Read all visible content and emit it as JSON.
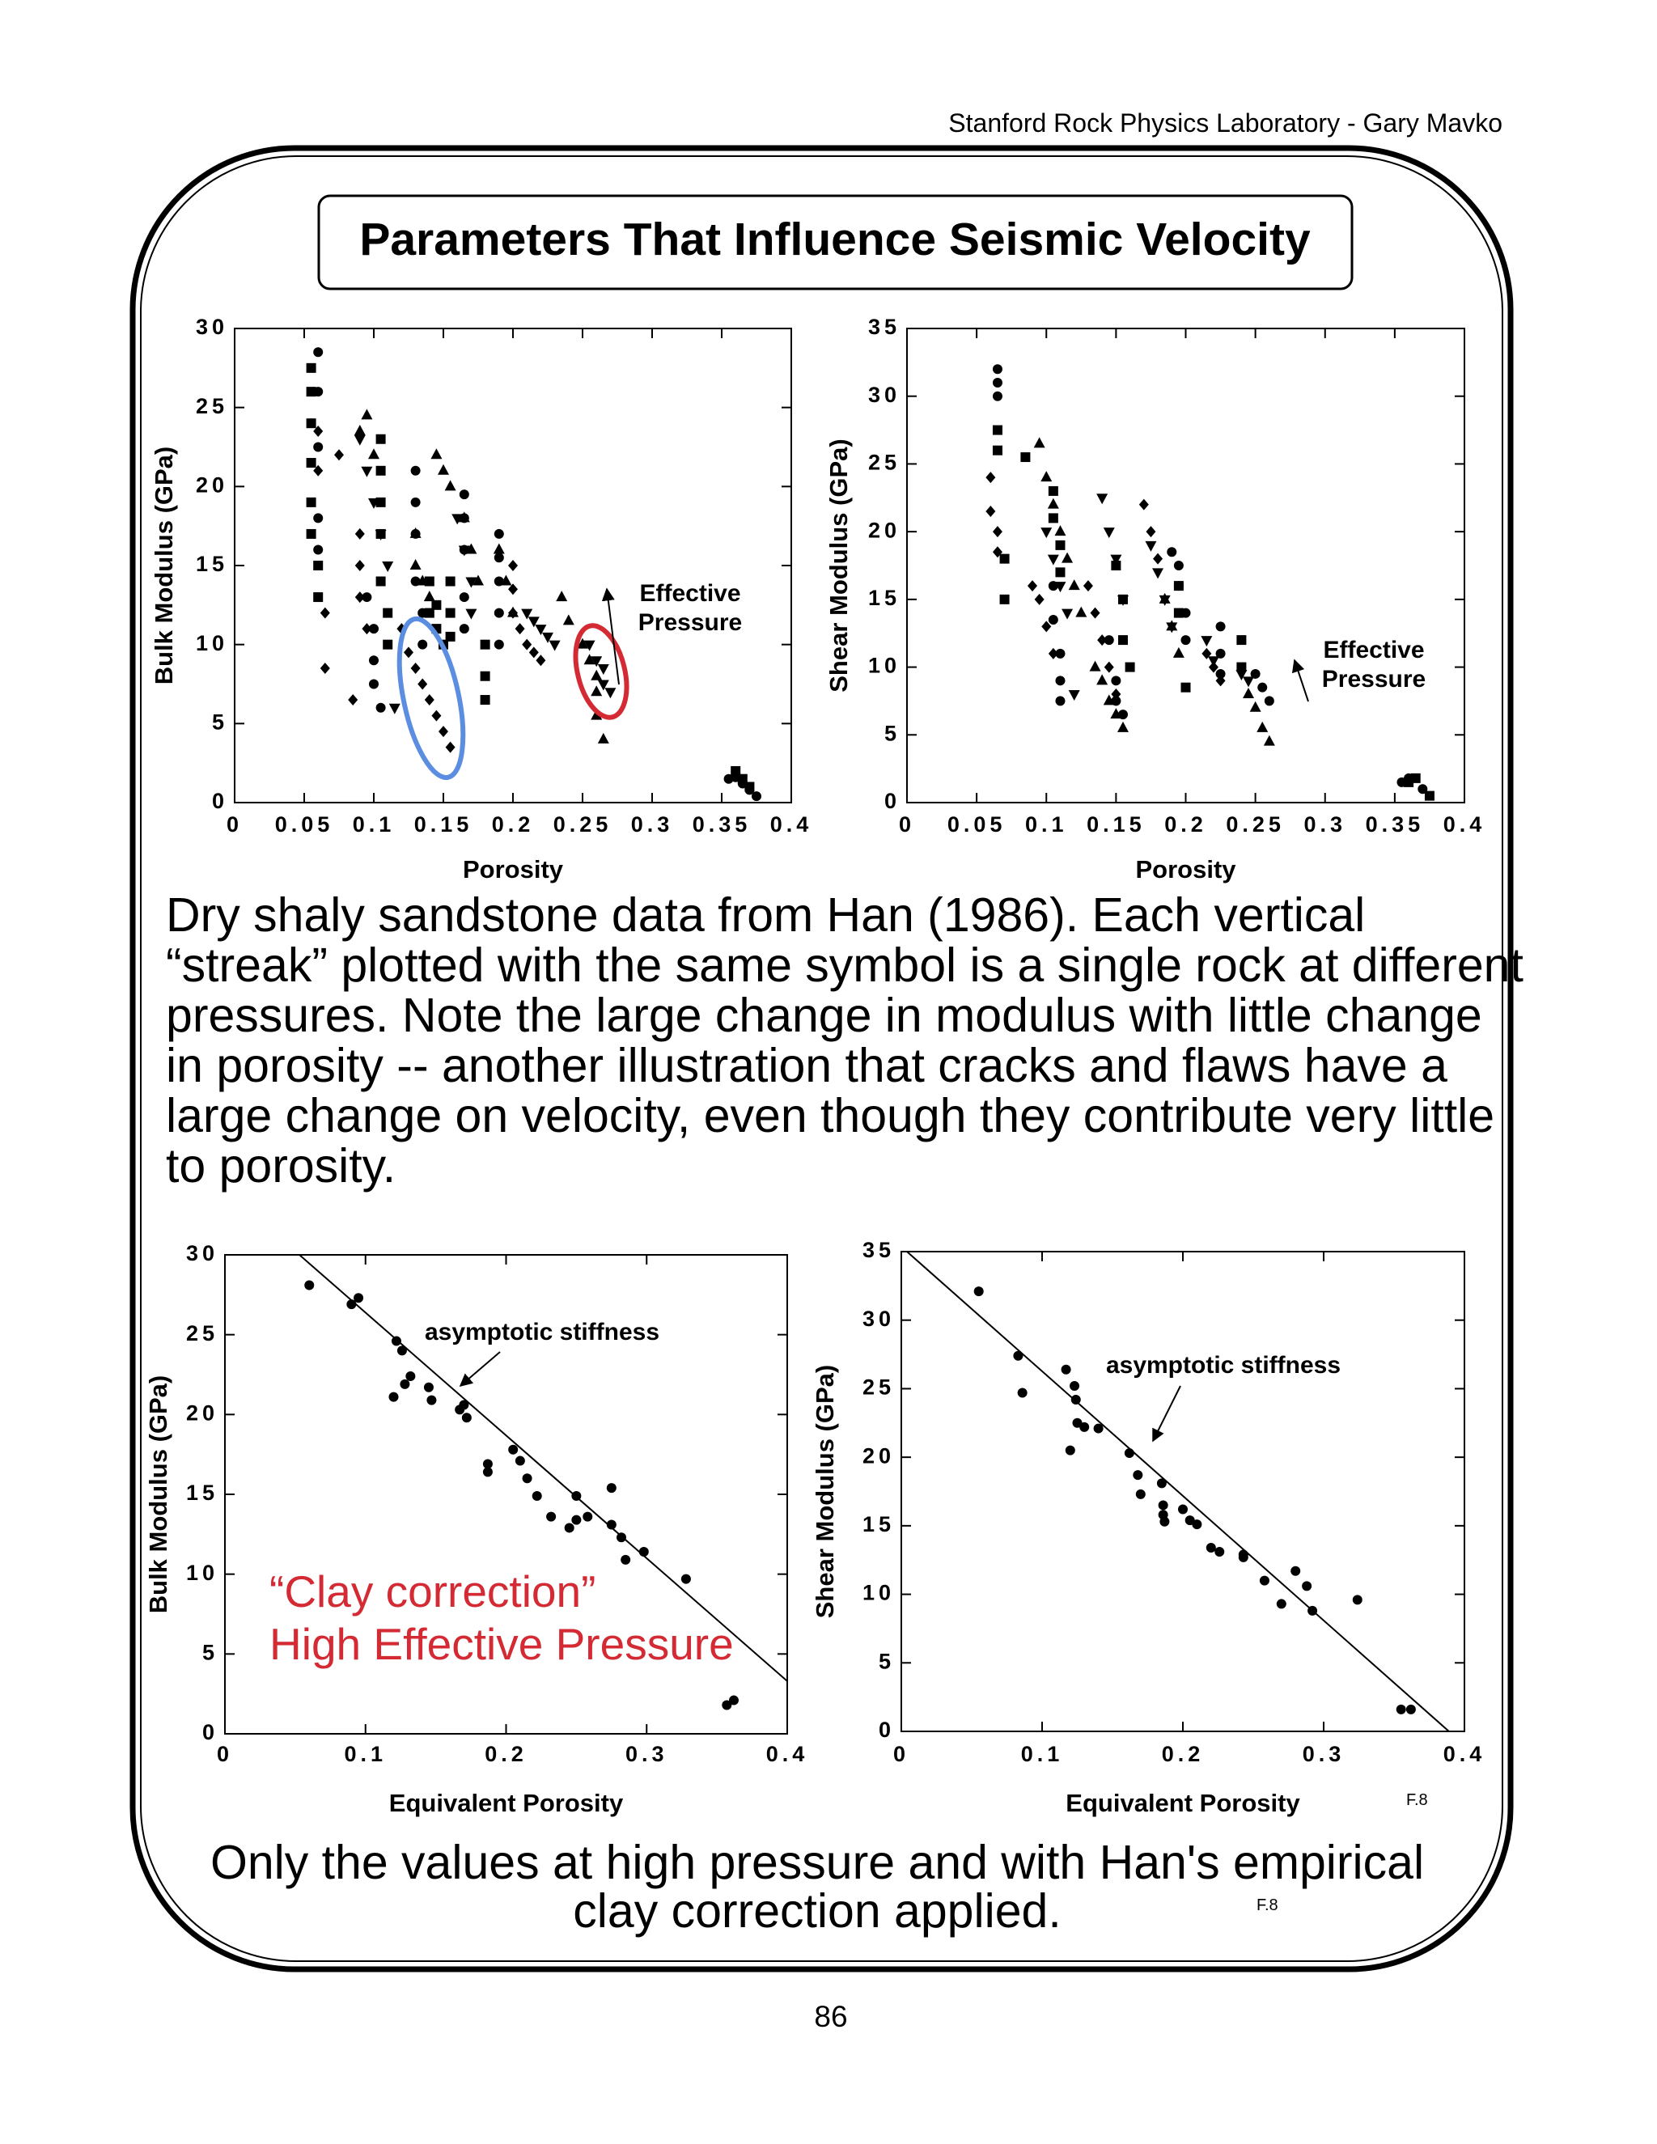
{
  "header": "Stanford Rock Physics Laboratory - Gary Mavko",
  "title": "Parameters That Influence Seismic Velocity",
  "paragraph": "Dry shaly sandstone data from Han (1986).  Each vertical “streak” plotted with the same symbol is a single rock at different pressures.  Note the large  change in modulus with little change in porosity -- another illustration that cracks and flaws have a large change on velocity, even though they contribute very little to porosity.",
  "caption": "Only the values at high pressure and with Han's empirical clay correction applied.",
  "figure_labels": [
    "F.8",
    "F.8"
  ],
  "page_number": "86",
  "chart_data": [
    {
      "type": "scatter",
      "xlabel": "Porosity",
      "ylabel": "Bulk Modulus (GPa)",
      "xlim": [
        0,
        0.4
      ],
      "xticks": [
        0,
        0.05,
        0.1,
        0.15,
        0.2,
        0.25,
        0.3,
        0.35,
        0.4
      ],
      "ylim": [
        0,
        30
      ],
      "yticks": [
        0,
        5,
        10,
        15,
        20,
        25,
        30
      ],
      "annotations": [
        {
          "text": "Effective Pressure",
          "color": "#000000"
        }
      ],
      "series": [
        {
          "marker": "circle",
          "color": "#000000",
          "x": [
            0.06,
            0.06,
            0.06,
            0.06,
            0.06,
            0.095,
            0.1,
            0.1,
            0.1,
            0.105,
            0.13,
            0.13,
            0.13,
            0.13,
            0.135,
            0.135,
            0.165,
            0.165,
            0.165,
            0.165,
            0.165,
            0.19,
            0.19,
            0.19,
            0.19,
            0.19,
            0.355,
            0.36,
            0.365,
            0.37,
            0.375
          ],
          "values": [
            28.5,
            26,
            22.5,
            18,
            16,
            13,
            11,
            9,
            7.5,
            6,
            21,
            19,
            17,
            14,
            12,
            10,
            19.5,
            18,
            16,
            13,
            11,
            17,
            15.5,
            14,
            12,
            10,
            1.5,
            1.6,
            1.2,
            0.8,
            0.4
          ]
        },
        {
          "marker": "square",
          "color": "#000000",
          "x": [
            0.055,
            0.055,
            0.055,
            0.055,
            0.055,
            0.055,
            0.06,
            0.06,
            0.105,
            0.105,
            0.105,
            0.105,
            0.105,
            0.11,
            0.11,
            0.14,
            0.14,
            0.145,
            0.145,
            0.15,
            0.155,
            0.155,
            0.155,
            0.18,
            0.18,
            0.18,
            0.36,
            0.365,
            0.37
          ],
          "values": [
            27.5,
            26,
            24,
            21.5,
            19,
            17,
            15,
            13,
            23,
            21,
            19,
            17,
            14,
            12,
            10,
            14,
            12,
            12.5,
            11,
            10,
            14,
            12,
            10.5,
            10,
            8,
            6.5,
            2,
            1.5,
            1
          ]
        },
        {
          "marker": "diamond",
          "color": "#000000",
          "x": [
            0.06,
            0.06,
            0.065,
            0.065,
            0.075,
            0.085,
            0.09,
            0.09,
            0.09,
            0.095,
            0.12,
            0.125,
            0.13,
            0.135,
            0.14,
            0.145,
            0.15,
            0.155,
            0.2,
            0.2,
            0.2,
            0.205,
            0.21,
            0.215,
            0.22
          ],
          "values": [
            23.5,
            21,
            12,
            8.5,
            22,
            6.5,
            17,
            15,
            13,
            11,
            11,
            9.5,
            8.5,
            7.5,
            6.5,
            5.5,
            4.5,
            3.5,
            15,
            13.5,
            12,
            11,
            10,
            9.5,
            9
          ]
        },
        {
          "marker": "triangle",
          "color": "#000000",
          "x": [
            0.09,
            0.095,
            0.1,
            0.13,
            0.13,
            0.135,
            0.14,
            0.145,
            0.15,
            0.155,
            0.165,
            0.17,
            0.175,
            0.19,
            0.195,
            0.2,
            0.235,
            0.24,
            0.25,
            0.255,
            0.26,
            0.26,
            0.26,
            0.265
          ],
          "values": [
            23.5,
            24.5,
            22,
            17,
            15,
            14,
            13,
            22,
            21,
            20,
            18,
            16,
            14,
            16,
            14,
            12,
            13,
            11.5,
            10,
            9,
            8,
            7,
            5.5,
            4
          ]
        },
        {
          "marker": "triangle-down",
          "color": "#000000",
          "x": [
            0.09,
            0.095,
            0.1,
            0.105,
            0.11,
            0.115,
            0.16,
            0.165,
            0.17,
            0.17,
            0.21,
            0.215,
            0.22,
            0.225,
            0.23,
            0.255,
            0.26,
            0.265,
            0.265,
            0.27
          ],
          "values": [
            23,
            21,
            19,
            17,
            15,
            6,
            18,
            16,
            14,
            12,
            12,
            11.5,
            11,
            10.5,
            10,
            10,
            9,
            8.5,
            7.5,
            7
          ]
        }
      ]
    },
    {
      "type": "scatter",
      "xlabel": "Porosity",
      "ylabel": "Shear Modulus (GPa)",
      "xlim": [
        0,
        0.4
      ],
      "xticks": [
        0,
        0.05,
        0.1,
        0.15,
        0.2,
        0.25,
        0.3,
        0.35,
        0.4
      ],
      "ylim": [
        0,
        35
      ],
      "yticks": [
        0,
        5,
        10,
        15,
        20,
        25,
        30,
        35
      ],
      "annotations": [
        {
          "text": "Effective Pressure",
          "color": "#000000"
        }
      ],
      "series": [
        {
          "marker": "circle",
          "color": "#000000",
          "x": [
            0.065,
            0.065,
            0.065,
            0.105,
            0.105,
            0.11,
            0.11,
            0.11,
            0.145,
            0.15,
            0.15,
            0.155,
            0.19,
            0.195,
            0.195,
            0.2,
            0.2,
            0.225,
            0.225,
            0.225,
            0.25,
            0.255,
            0.26,
            0.355,
            0.36,
            0.37
          ],
          "values": [
            32,
            31,
            30,
            16,
            13.5,
            11,
            9,
            7.5,
            12,
            9,
            7.5,
            6.5,
            18.5,
            17.5,
            16,
            14,
            12,
            13,
            11,
            9.5,
            9.5,
            8.5,
            7.5,
            1.5,
            1.8,
            1
          ]
        },
        {
          "marker": "square",
          "color": "#000000",
          "x": [
            0.065,
            0.065,
            0.07,
            0.07,
            0.085,
            0.105,
            0.105,
            0.11,
            0.11,
            0.15,
            0.155,
            0.155,
            0.16,
            0.195,
            0.195,
            0.2,
            0.24,
            0.24,
            0.36,
            0.365,
            0.375
          ],
          "values": [
            27.5,
            26,
            18,
            15,
            25.5,
            23,
            21,
            19,
            17,
            17.5,
            15,
            12,
            10,
            16,
            14,
            8.5,
            12,
            10,
            1.5,
            1.8,
            0.5
          ]
        },
        {
          "marker": "diamond",
          "color": "#000000",
          "x": [
            0.06,
            0.06,
            0.065,
            0.065,
            0.09,
            0.095,
            0.1,
            0.105,
            0.13,
            0.135,
            0.14,
            0.145,
            0.15,
            0.17,
            0.175,
            0.18,
            0.215,
            0.22,
            0.225
          ],
          "values": [
            24,
            21.5,
            20,
            18.5,
            16,
            15,
            13,
            11,
            16,
            14,
            12,
            10,
            8,
            22,
            20,
            18,
            11,
            10,
            9
          ]
        },
        {
          "marker": "triangle",
          "color": "#000000",
          "x": [
            0.095,
            0.1,
            0.105,
            0.11,
            0.115,
            0.12,
            0.125,
            0.135,
            0.14,
            0.145,
            0.15,
            0.155,
            0.185,
            0.19,
            0.195,
            0.245,
            0.25,
            0.255,
            0.26
          ],
          "values": [
            26.5,
            24,
            22,
            20,
            18,
            16,
            14,
            10,
            9,
            7.5,
            6.5,
            5.5,
            15,
            13,
            11,
            8,
            7,
            5.5,
            4.5
          ]
        },
        {
          "marker": "triangle-down",
          "color": "#000000",
          "x": [
            0.1,
            0.105,
            0.11,
            0.115,
            0.12,
            0.14,
            0.145,
            0.15,
            0.155,
            0.175,
            0.18,
            0.185,
            0.19,
            0.215,
            0.22,
            0.24,
            0.245
          ],
          "values": [
            20,
            18,
            16,
            14,
            8,
            22.5,
            20,
            18,
            15,
            19,
            17,
            15,
            13,
            12,
            10.5,
            9.5,
            9
          ]
        }
      ]
    },
    {
      "type": "scatter",
      "xlabel": "Equivalent Porosity",
      "ylabel": "Bulk Modulus (GPa)",
      "xlim": [
        0,
        0.4
      ],
      "xticks": [
        0,
        0.1,
        0.2,
        0.3,
        0.4
      ],
      "ylim": [
        0,
        30
      ],
      "yticks": [
        0,
        5,
        10,
        15,
        20,
        25,
        30
      ],
      "annotations": [
        {
          "text": "asymptotic stiffness",
          "color": "#000000"
        },
        {
          "text": "“Clay correction”",
          "color": "#d42a34"
        },
        {
          "text": "High Effective Pressure",
          "color": "#d42a34"
        }
      ],
      "fit_line": {
        "x": [
          0.053,
          0.4
        ],
        "y": [
          30,
          3.3
        ]
      },
      "series": [
        {
          "marker": "circle",
          "color": "#000000",
          "x": [
            0.06,
            0.09,
            0.095,
            0.122,
            0.126,
            0.132,
            0.12,
            0.128,
            0.145,
            0.147,
            0.167,
            0.172,
            0.17,
            0.205,
            0.21,
            0.187,
            0.187,
            0.215,
            0.222,
            0.232,
            0.245,
            0.25,
            0.258,
            0.25,
            0.275,
            0.275,
            0.282,
            0.285,
            0.298,
            0.328,
            0.357,
            0.362
          ],
          "values": [
            28.1,
            26.9,
            27.3,
            24.6,
            24,
            22.4,
            21.1,
            21.9,
            21.7,
            20.9,
            20.3,
            19.8,
            20.6,
            17.8,
            17.1,
            16.9,
            16.4,
            16,
            14.9,
            13.6,
            12.9,
            13.4,
            13.6,
            14.9,
            15.4,
            13.1,
            12.3,
            10.9,
            11.4,
            9.7,
            1.8,
            2.1
          ]
        }
      ]
    },
    {
      "type": "scatter",
      "xlabel": "Equivalent Porosity",
      "ylabel": "Shear Modulus (GPa)",
      "xlim": [
        0,
        0.4
      ],
      "xticks": [
        0,
        0.1,
        0.2,
        0.3,
        0.4
      ],
      "ylim": [
        0,
        35
      ],
      "yticks": [
        0,
        5,
        10,
        15,
        20,
        25,
        30,
        35
      ],
      "annotations": [
        {
          "text": "asymptotic stiffness",
          "color": "#000000"
        }
      ],
      "fit_line": {
        "x": [
          0.004,
          0.389
        ],
        "y": [
          35,
          0
        ]
      },
      "series": [
        {
          "marker": "circle",
          "color": "#000000",
          "x": [
            0.055,
            0.083,
            0.086,
            0.117,
            0.12,
            0.123,
            0.124,
            0.125,
            0.13,
            0.14,
            0.162,
            0.168,
            0.17,
            0.185,
            0.186,
            0.187,
            0.186,
            0.2,
            0.205,
            0.21,
            0.22,
            0.226,
            0.243,
            0.243,
            0.258,
            0.27,
            0.28,
            0.288,
            0.292,
            0.324,
            0.355,
            0.362
          ],
          "values": [
            32.1,
            27.4,
            24.7,
            26.4,
            20.5,
            25.2,
            24.2,
            22.5,
            22.2,
            22.1,
            20.3,
            18.7,
            17.3,
            18.1,
            16.5,
            15.3,
            15.8,
            16.2,
            15.4,
            15.1,
            13.4,
            13.1,
            12.7,
            12.9,
            11,
            9.3,
            11.7,
            10.6,
            8.8,
            9.6,
            1.6,
            1.6
          ]
        }
      ]
    }
  ]
}
